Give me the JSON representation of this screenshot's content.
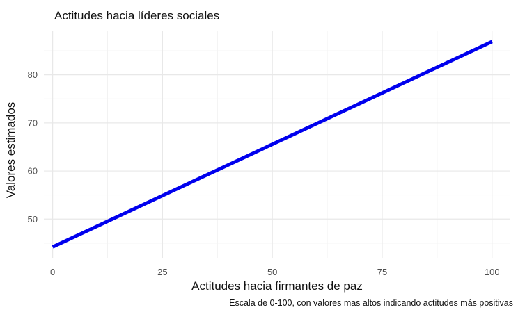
{
  "chart_data": {
    "type": "line",
    "title": "Actitudes hacia líderes sociales",
    "xlabel": "Actitudes hacia firmantes de paz",
    "ylabel": "Valores estimados",
    "caption": "Escala de 0-100, con valores mas altos indicando actitudes más positivas",
    "xlim": [
      -2,
      104
    ],
    "ylim": [
      41.8,
      89.2
    ],
    "x_ticks": [
      0,
      25,
      50,
      75,
      100
    ],
    "x_tick_labels": [
      "0",
      "25",
      "50",
      "75",
      "100"
    ],
    "y_ticks": [
      50,
      60,
      70,
      80
    ],
    "y_tick_labels": [
      "50",
      "60",
      "70",
      "80"
    ],
    "grid": true,
    "series": [
      {
        "color": "#0000ee",
        "x": [
          0,
          100
        ],
        "y": [
          44.2,
          86.9
        ]
      }
    ]
  }
}
